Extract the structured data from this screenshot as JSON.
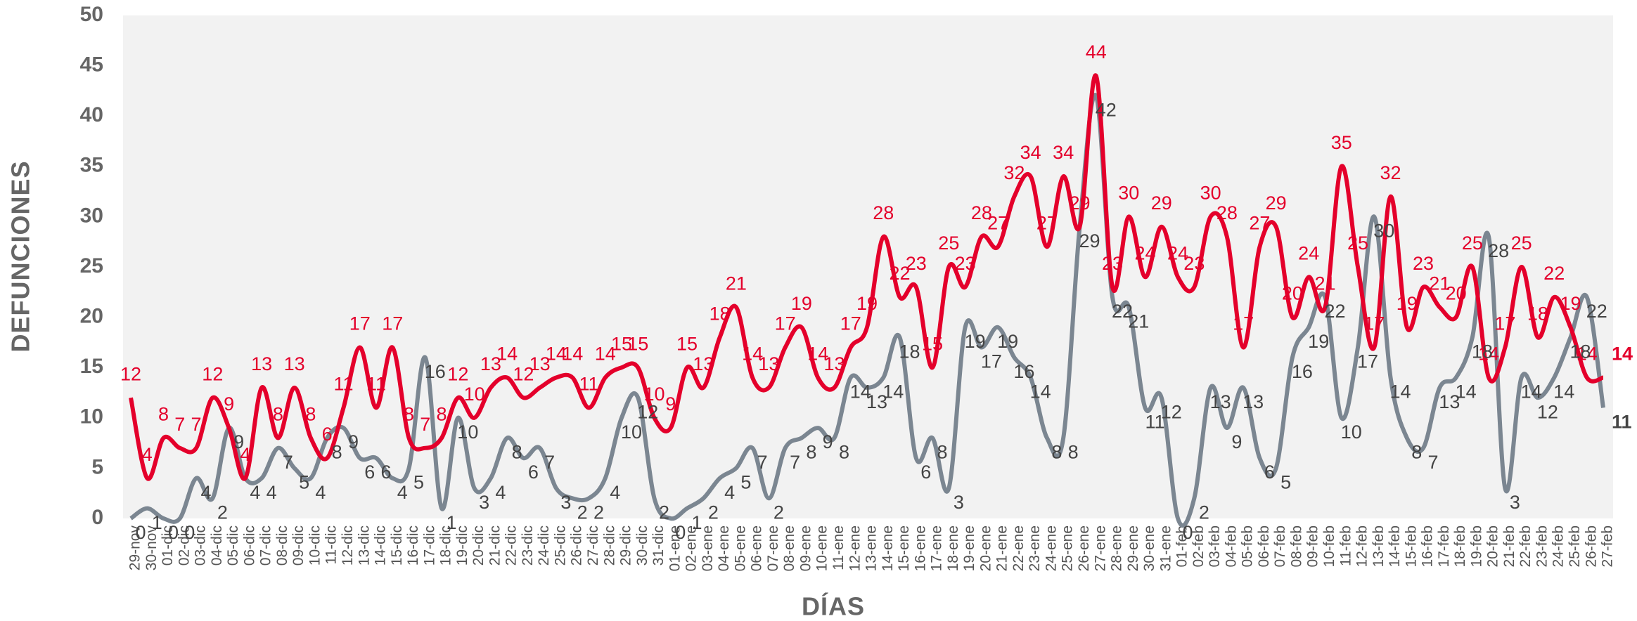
{
  "chart_data": {
    "type": "line",
    "x_label": "DÍAS",
    "y_label": "DEFUNCIONES",
    "categories": [
      "29-nov",
      "30-nov",
      "01-dic",
      "02-dic",
      "03-dic",
      "04-dic",
      "05-dic",
      "06-dic",
      "07-dic",
      "08-dic",
      "09-dic",
      "10-dic",
      "11-dic",
      "12-dic",
      "13-dic",
      "14-dic",
      "15-dic",
      "16-dic",
      "17-dic",
      "18-dic",
      "19-dic",
      "20-dic",
      "21-dic",
      "22-dic",
      "23-dic",
      "24-dic",
      "25-dic",
      "26-dic",
      "27-dic",
      "28-dic",
      "29-dic",
      "30-dic",
      "31-dic",
      "01-ene",
      "02-ene",
      "03-ene",
      "04-ene",
      "05-ene",
      "06-ene",
      "07-ene",
      "08-ene",
      "09-ene",
      "10-ene",
      "11-ene",
      "12-ene",
      "13-ene",
      "14-ene",
      "15-ene",
      "16-ene",
      "17-ene",
      "18-ene",
      "19-ene",
      "20-ene",
      "21-ene",
      "22-ene",
      "23-ene",
      "24-ene",
      "25-ene",
      "26-ene",
      "27-ene",
      "28-ene",
      "29-ene",
      "30-ene",
      "31-ene",
      "01-feb",
      "02-feb",
      "03-feb",
      "04-feb",
      "05-feb",
      "06-feb",
      "07-feb",
      "08-feb",
      "09-feb",
      "10-feb",
      "11-feb",
      "12-feb",
      "13-feb",
      "14-feb",
      "15-feb",
      "16-feb",
      "17-feb",
      "18-feb",
      "19-feb",
      "20-feb",
      "21-feb",
      "22-feb",
      "23-feb",
      "24-feb",
      "25-feb",
      "26-feb",
      "27-feb"
    ],
    "series": [
      {
        "color": "#e4002b",
        "values": [
          12,
          4,
          8,
          7,
          7,
          12,
          9,
          4,
          13,
          8,
          13,
          8,
          6,
          11,
          17,
          11,
          17,
          8,
          7,
          8,
          12,
          10,
          13,
          14,
          12,
          13,
          14,
          14,
          11,
          14,
          15,
          15,
          10,
          9,
          15,
          13,
          18,
          21,
          14,
          13,
          17,
          19,
          14,
          13,
          17,
          19,
          28,
          22,
          23,
          15,
          25,
          23,
          28,
          27,
          32,
          34,
          27,
          34,
          29,
          44,
          23,
          30,
          24,
          29,
          24,
          23,
          30,
          28,
          17,
          27,
          29,
          20,
          24,
          21,
          35,
          25,
          17,
          32,
          19,
          23,
          21,
          20,
          25,
          14,
          17,
          25,
          18,
          22,
          19,
          14,
          14
        ]
      },
      {
        "color": "#7b8691",
        "values": [
          0,
          1,
          0,
          0,
          4,
          2,
          9,
          4,
          4,
          7,
          5,
          4,
          8,
          9,
          6,
          6,
          4,
          5,
          16,
          1,
          10,
          3,
          4,
          8,
          6,
          7,
          3,
          2,
          2,
          4,
          10,
          12,
          2,
          0,
          1,
          2,
          4,
          5,
          7,
          2,
          7,
          8,
          9,
          8,
          14,
          13,
          14,
          18,
          6,
          8,
          3,
          19,
          17,
          19,
          16,
          14,
          8,
          8,
          29,
          42,
          22,
          21,
          11,
          12,
          0,
          2,
          13,
          9,
          13,
          6,
          5,
          16,
          19,
          22,
          10,
          17,
          30,
          14,
          8,
          7,
          13,
          14,
          18,
          28,
          3,
          14,
          12,
          14,
          18,
          22,
          11
        ]
      }
    ],
    "ylim": [
      0,
      50
    ],
    "yticks": [
      0,
      5,
      10,
      15,
      20,
      25,
      30,
      35,
      40,
      45,
      50
    ],
    "plot_background": "#f2f2f2"
  }
}
